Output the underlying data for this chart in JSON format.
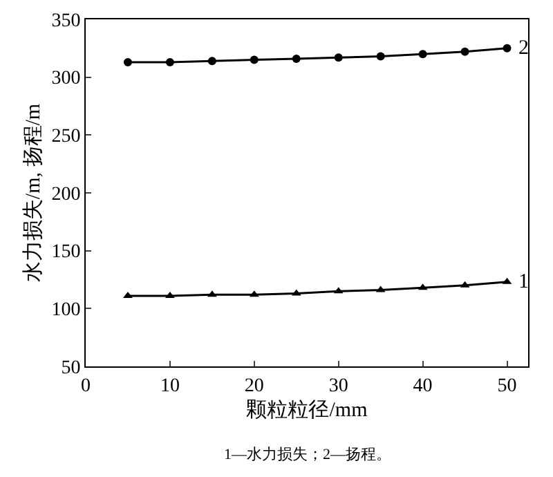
{
  "chart_data": {
    "type": "line",
    "xlabel": "颗粒粒径/mm",
    "ylabel": "水力损失/m, 扬程/m",
    "x": [
      5,
      10,
      15,
      20,
      25,
      30,
      35,
      40,
      45,
      50
    ],
    "series": [
      {
        "name": "2",
        "color": "#000000",
        "marker": "circle",
        "values": [
          313,
          313,
          314,
          315,
          316,
          317,
          318,
          320,
          322,
          325
        ]
      },
      {
        "name": "1",
        "color": "#000000",
        "marker": "triangle",
        "values": [
          111,
          111,
          112,
          112,
          113,
          115,
          116,
          118,
          120,
          123
        ]
      }
    ],
    "xlim": [
      0,
      52.5
    ],
    "xticks": [
      0,
      10,
      20,
      30,
      40,
      50
    ],
    "ylim": [
      50,
      350
    ],
    "yticks": [
      50,
      100,
      150,
      200,
      250,
      300,
      350
    ],
    "grid": false,
    "legend": false,
    "line_style": "solid",
    "annotations": [
      "1—水力损失；2—扬程。"
    ]
  }
}
